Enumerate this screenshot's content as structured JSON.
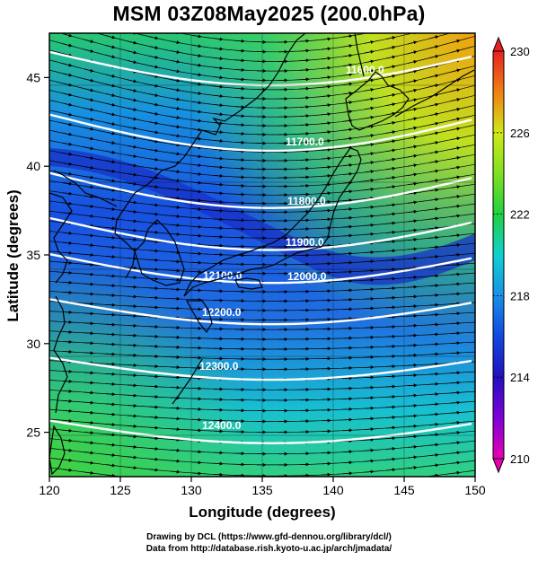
{
  "title": "MSM 03Z08May2025 (200.0hPa)",
  "credits": {
    "line1": "Drawing by DCL (https://www.gfd-dennou.org/library/dcl/)",
    "line2": "Data from http://database.rish.kyoto-u.ac.jp/arch/jmadata/"
  },
  "x_axis": {
    "label": "Longitude (degrees)",
    "ticks": [
      120,
      125,
      130,
      135,
      140,
      145,
      150
    ],
    "range": [
      120,
      150
    ]
  },
  "y_axis": {
    "label": "Latitude  (degrees)",
    "ticks": [
      25,
      30,
      35,
      40,
      45
    ],
    "range": [
      22.5,
      47.5
    ]
  },
  "colorbar": {
    "ticks": [
      "210",
      "214",
      "218",
      "222",
      "226",
      "230"
    ],
    "range": [
      210,
      230
    ],
    "colors": [
      "#e800b0",
      "#8000d8",
      "#2010c0",
      "#1048e0",
      "#1890e8",
      "#10d0d0",
      "#20d090",
      "#20d040",
      "#60e020",
      "#c0e818",
      "#f0c000",
      "#f07010",
      "#e82020"
    ]
  },
  "contours": {
    "color": "#ffffff",
    "labels": [
      "11600.0",
      "11700.0",
      "11800.0",
      "11900.0",
      "12000.0",
      "12100.0",
      "12200.0",
      "12300.0",
      "12400.0"
    ]
  },
  "streamlines": {
    "color": "#000000",
    "direction": "west-to-east"
  },
  "coastline_color": "#000000"
}
